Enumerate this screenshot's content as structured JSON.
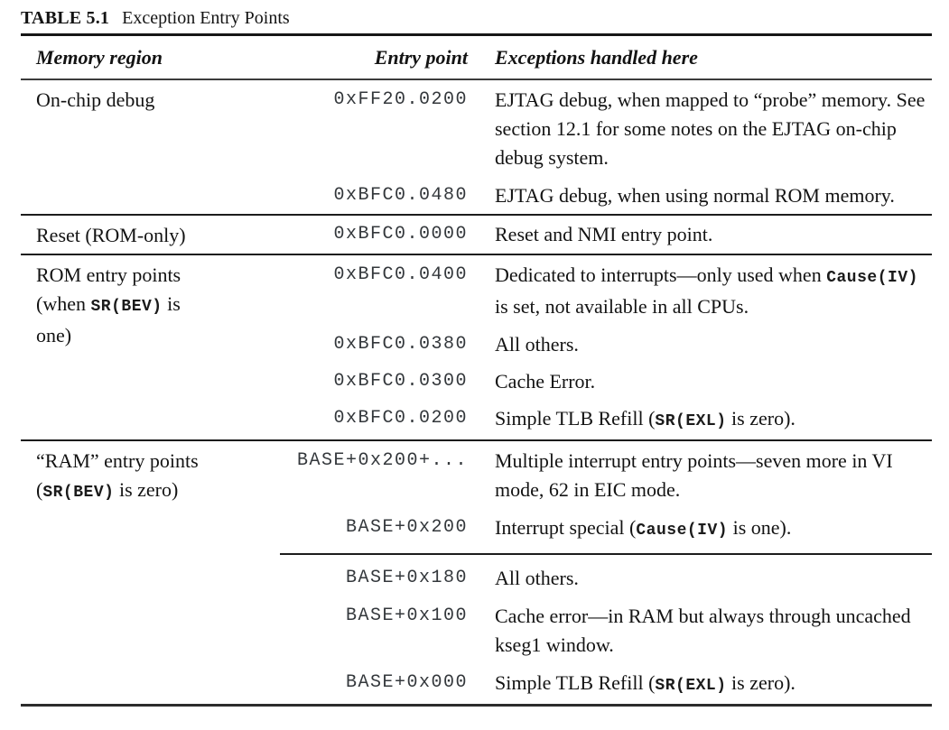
{
  "title": {
    "label": "TABLE 5.1",
    "caption": "Exception Entry Points"
  },
  "columns": [
    "Memory region",
    "Entry point",
    "Exceptions handled here"
  ],
  "colors": {
    "rule": "#161616",
    "text": "#131313",
    "mono": "#34383c"
  },
  "sections": [
    {
      "region": [
        {
          "t": "text",
          "v": "On-chip debug"
        }
      ],
      "rows": [
        {
          "entry": "0xFF20.0200",
          "desc": [
            {
              "t": "text",
              "v": "EJTAG debug, when mapped to “probe” memory. See section 12.1 for some notes on the EJTAG on-chip debug system."
            }
          ]
        },
        {
          "entry": "0xBFC0.0480",
          "desc": [
            {
              "t": "text",
              "v": "EJTAG debug, when using normal ROM memory."
            }
          ]
        }
      ]
    },
    {
      "region": [
        {
          "t": "text",
          "v": "Reset (ROM-only)"
        }
      ],
      "rows": [
        {
          "entry": "0xBFC0.0000",
          "desc": [
            {
              "t": "text",
              "v": "Reset and NMI entry point."
            }
          ]
        }
      ]
    },
    {
      "region": [
        {
          "t": "text",
          "v": "ROM entry points (when "
        },
        {
          "t": "code",
          "v": "SR(BEV)"
        },
        {
          "t": "text",
          "v": " is one)"
        }
      ],
      "rows": [
        {
          "entry": "0xBFC0.0400",
          "desc": [
            {
              "t": "text",
              "v": "Dedicated to interrupts—only used when "
            },
            {
              "t": "code",
              "v": "Cause(IV)"
            },
            {
              "t": "text",
              "v": " is set, not available in all CPUs."
            }
          ]
        },
        {
          "entry": "0xBFC0.0380",
          "desc": [
            {
              "t": "text",
              "v": "All others."
            }
          ]
        },
        {
          "entry": "0xBFC0.0300",
          "desc": [
            {
              "t": "text",
              "v": "Cache Error."
            }
          ]
        },
        {
          "entry": "0xBFC0.0200",
          "desc": [
            {
              "t": "text",
              "v": "Simple TLB Refill ("
            },
            {
              "t": "code",
              "v": "SR(EXL)"
            },
            {
              "t": "text",
              "v": " is zero)."
            }
          ]
        }
      ]
    },
    {
      "region": [
        {
          "t": "text",
          "v": "“RAM” entry points ("
        },
        {
          "t": "code",
          "v": "SR(BEV)"
        },
        {
          "t": "text",
          "v": " is zero)"
        }
      ],
      "rows": [
        {
          "entry": "BASE+0x200+...",
          "desc": [
            {
              "t": "text",
              "v": "Multiple interrupt entry points—seven more in VI mode, 62 in EIC mode."
            }
          ]
        },
        {
          "entry": "BASE+0x200",
          "desc": [
            {
              "t": "text",
              "v": "Interrupt special ("
            },
            {
              "t": "code",
              "v": "Cause(IV)"
            },
            {
              "t": "text",
              "v": " is one)."
            }
          ]
        },
        {
          "rule_before": true,
          "entry": "BASE+0x180",
          "desc": [
            {
              "t": "text",
              "v": "All others."
            }
          ]
        },
        {
          "entry": "BASE+0x100",
          "desc": [
            {
              "t": "text",
              "v": "Cache error—in RAM but always through uncached kseg1 window."
            }
          ]
        },
        {
          "entry": "BASE+0x000",
          "desc": [
            {
              "t": "text",
              "v": "Simple TLB Refill ("
            },
            {
              "t": "code",
              "v": "SR(EXL)"
            },
            {
              "t": "text",
              "v": " is zero)."
            }
          ]
        }
      ]
    }
  ]
}
